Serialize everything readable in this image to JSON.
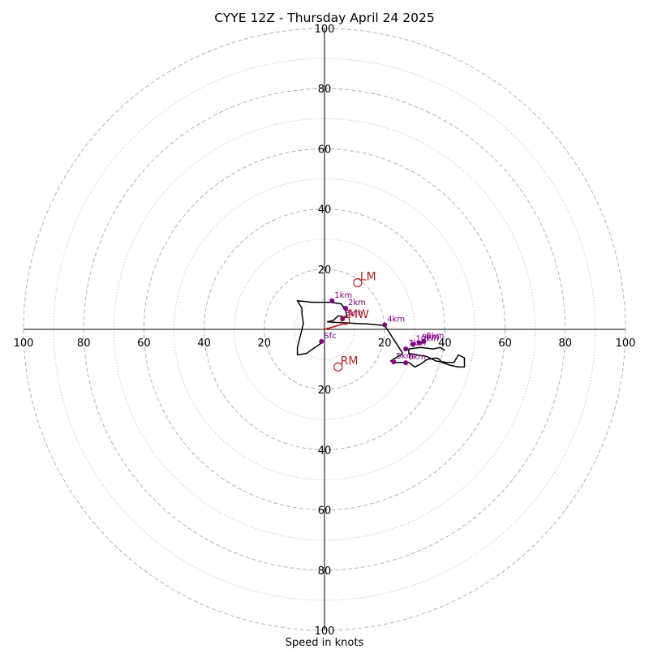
{
  "chart_data": {
    "type": "scatter",
    "title": "CYYE 12Z - Thursday April 24 2025",
    "xlabel": "Speed in knots",
    "ylabel": "",
    "xlim": [
      -100,
      100
    ],
    "ylim": [
      -100,
      100
    ],
    "rings": [
      {
        "speed": 10,
        "style": "dotted"
      },
      {
        "speed": 20,
        "style": "dashed"
      },
      {
        "speed": 30,
        "style": "dotted"
      },
      {
        "speed": 40,
        "style": "dashed"
      },
      {
        "speed": 50,
        "style": "dotted"
      },
      {
        "speed": 60,
        "style": "dashed"
      },
      {
        "speed": 70,
        "style": "dotted"
      },
      {
        "speed": 80,
        "style": "dashed"
      },
      {
        "speed": 90,
        "style": "dotted"
      },
      {
        "speed": 100,
        "style": "dashed"
      }
    ],
    "x_ticks": [
      {
        "v": -100,
        "label": "100"
      },
      {
        "v": -80,
        "label": "80"
      },
      {
        "v": -60,
        "label": "60"
      },
      {
        "v": -40,
        "label": "40"
      },
      {
        "v": -20,
        "label": "20"
      },
      {
        "v": 20,
        "label": "20"
      },
      {
        "v": 40,
        "label": "40"
      },
      {
        "v": 60,
        "label": "60"
      },
      {
        "v": 80,
        "label": "80"
      },
      {
        "v": 100,
        "label": "100"
      }
    ],
    "y_ticks": [
      {
        "v": 100,
        "label": "100"
      },
      {
        "v": 80,
        "label": "80"
      },
      {
        "v": 60,
        "label": "60"
      },
      {
        "v": 40,
        "label": "40"
      },
      {
        "v": 20,
        "label": "20"
      },
      {
        "v": -20,
        "label": "20"
      },
      {
        "v": -40,
        "label": "40"
      },
      {
        "v": -60,
        "label": "60"
      },
      {
        "v": -80,
        "label": "80"
      },
      {
        "v": -100,
        "label": "100"
      }
    ],
    "trace": {
      "color": "#000000",
      "points": [
        [
          -1,
          -4.5
        ],
        [
          -6,
          -8
        ],
        [
          -9,
          -8.5
        ],
        [
          -9,
          -6
        ],
        [
          -7.5,
          0
        ],
        [
          -7,
          2
        ],
        [
          -7.5,
          5
        ],
        [
          -7.5,
          7
        ],
        [
          -9,
          9.5
        ],
        [
          -4,
          9
        ],
        [
          2,
          9
        ],
        [
          5.5,
          8.5
        ],
        [
          7,
          6.5
        ],
        [
          7.5,
          4
        ],
        [
          4.5,
          4.5
        ],
        [
          3,
          3
        ],
        [
          1,
          2.5
        ],
        [
          4,
          2.3
        ],
        [
          6,
          2.2
        ],
        [
          10,
          2
        ],
        [
          14,
          1.8
        ],
        [
          20,
          1.3
        ],
        [
          26,
          -8
        ],
        [
          22,
          -10.5
        ],
        [
          24,
          -11
        ],
        [
          26,
          -11
        ],
        [
          28,
          -11
        ],
        [
          30,
          -12.5
        ],
        [
          32,
          -11.5
        ],
        [
          34,
          -10
        ],
        [
          37,
          -9.5
        ],
        [
          38,
          -9.8
        ],
        [
          39,
          -11
        ],
        [
          42,
          -12
        ],
        [
          44.5,
          -12.5
        ],
        [
          46.5,
          -12.5
        ],
        [
          46.5,
          -9.5
        ],
        [
          44.5,
          -8.5
        ],
        [
          43,
          -11
        ],
        [
          40.5,
          -11
        ],
        [
          37,
          -10.5
        ],
        [
          34,
          -9
        ],
        [
          28,
          -8
        ],
        [
          28,
          -6.5
        ],
        [
          32,
          -6
        ],
        [
          36,
          -6.5
        ],
        [
          38.5,
          -6
        ],
        [
          40,
          -7
        ]
      ]
    },
    "height_points": [
      {
        "label": "Sfc",
        "x": -1,
        "y": -4
      },
      {
        "label": "1km",
        "x": 2.5,
        "y": 9.5
      },
      {
        "label": "2km",
        "x": 7,
        "y": 7
      },
      {
        "label": "3km",
        "x": 6,
        "y": 3.5
      },
      {
        "label": "4km",
        "x": 20,
        "y": 1.5
      },
      {
        "label": "5km",
        "x": 23,
        "y": -10.8
      },
      {
        "label": "6km",
        "x": 27,
        "y": -11.1
      },
      {
        "label": "7km",
        "x": 27,
        "y": -6.5
      },
      {
        "label": "8km",
        "x": 33,
        "y": -4
      },
      {
        "label": "9km",
        "x": 31.5,
        "y": -4.5
      },
      {
        "label": "10km",
        "x": 29.5,
        "y": -5
      }
    ],
    "motion_vectors": [
      {
        "label": "LM",
        "x": 11,
        "y": 15.5
      },
      {
        "label": "RM",
        "x": 4.5,
        "y": -12.5
      },
      {
        "label": "MW",
        "x": 7,
        "y": 3
      }
    ],
    "shear_vector": {
      "color": "#cc0000",
      "from": [
        0,
        0
      ],
      "to": [
        7,
        2
      ]
    },
    "colors": {
      "grid": "#b3b3b3",
      "trace": "#000000",
      "height_marker": "#800080",
      "motion": "#b22222",
      "shear": "#cc0000"
    }
  }
}
